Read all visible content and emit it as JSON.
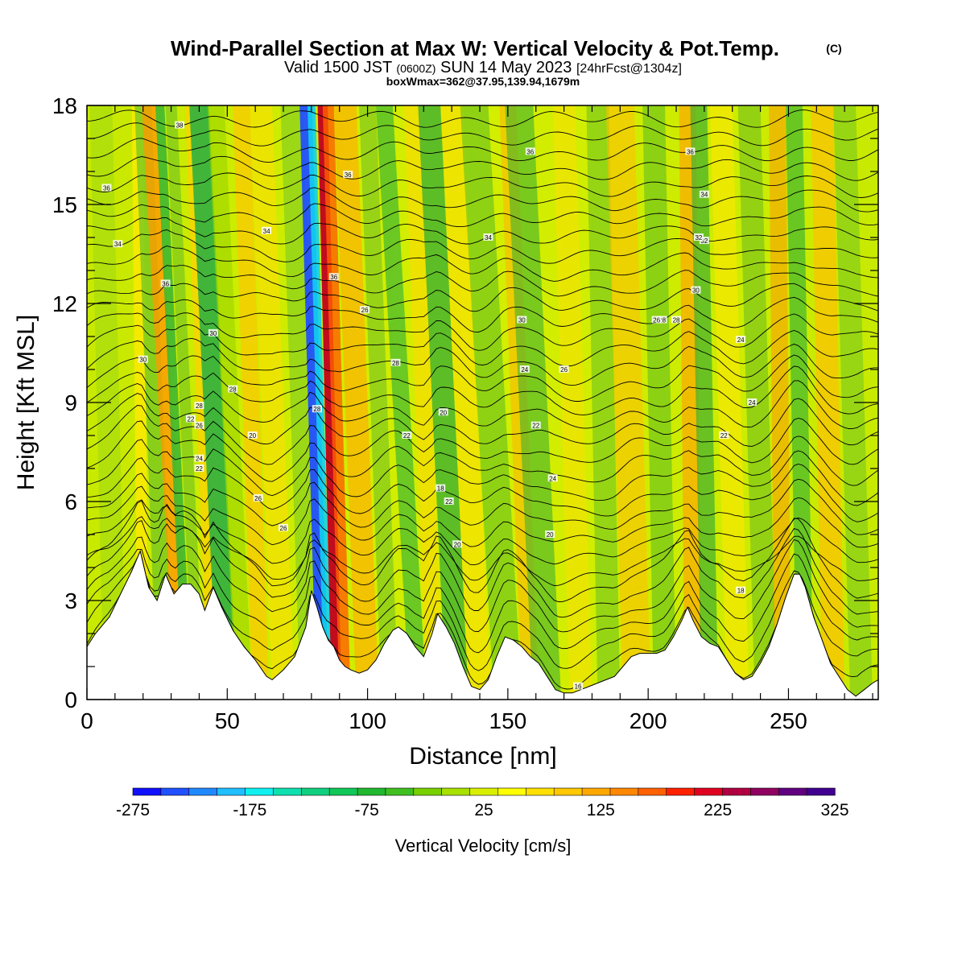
{
  "title": {
    "main": "Wind-Parallel Section at Max W: Vertical Velocity & Pot.Temp.",
    "copyright_mark": "(C)",
    "valid_prefix": "Valid 1500 JST",
    "valid_utc": "(0600Z)",
    "valid_date": "SUN 14 May 2023",
    "forecast": "[24hrFcst@1304z]",
    "boxwmax": "boxWmax=362@37.95,139.94,1679m"
  },
  "chart_data": {
    "type": "heatmap",
    "xlabel": "Distance [nm]",
    "ylabel": "Height [Kft MSL]",
    "xlim": [
      0,
      282
    ],
    "ylim": [
      0,
      18
    ],
    "x_ticks": [
      0,
      50,
      100,
      150,
      200,
      250
    ],
    "y_ticks": [
      0,
      3,
      6,
      9,
      12,
      15,
      18
    ],
    "colorbar": {
      "label": "Vertical Velocity [cm/s]",
      "tick_labels": [
        "-275",
        "-175",
        "-75",
        "25",
        "125",
        "225",
        "325"
      ],
      "tick_values": [
        -275,
        -175,
        -75,
        25,
        125,
        225,
        325
      ],
      "range": [
        -275,
        325
      ],
      "colors": [
        "#1010ff",
        "#2050ff",
        "#2088ff",
        "#20bfff",
        "#10f0f0",
        "#10e0b0",
        "#10d080",
        "#10c858",
        "#20b830",
        "#40c020",
        "#78d000",
        "#a8e000",
        "#d8f000",
        "#ffff00",
        "#ffe000",
        "#ffc800",
        "#ffa800",
        "#ff8800",
        "#ff6000",
        "#ff2000",
        "#e00020",
        "#b00040",
        "#900060",
        "#600080",
        "#400090"
      ]
    },
    "terrain": {
      "description": "white terrain silhouette, height in kft",
      "x": [
        0,
        3,
        8,
        12,
        16,
        19,
        22,
        25,
        28,
        31,
        34,
        37,
        40,
        42,
        45,
        48,
        52,
        56,
        60,
        64,
        66,
        70,
        74,
        78,
        80,
        82,
        84,
        86,
        88,
        90,
        92,
        94,
        97,
        100,
        103,
        106,
        109,
        111,
        114,
        117,
        120,
        123,
        125,
        128,
        131,
        134,
        137,
        140,
        143,
        146,
        149,
        152,
        155,
        158,
        161,
        164,
        167,
        170,
        173,
        176,
        179,
        182,
        185,
        188,
        191,
        194,
        197,
        200,
        203,
        206,
        209,
        212,
        214,
        216,
        219,
        222,
        225,
        228,
        231,
        234,
        237,
        240,
        243,
        246,
        249,
        252,
        254,
        256,
        259,
        262,
        265,
        268,
        271,
        274,
        277,
        280,
        282
      ],
      "h": [
        1.6,
        2.0,
        2.5,
        3.2,
        3.9,
        4.5,
        3.4,
        3.0,
        3.8,
        3.2,
        3.5,
        3.5,
        3.2,
        2.7,
        3.4,
        2.8,
        2.1,
        1.6,
        1.2,
        0.7,
        0.6,
        0.9,
        1.3,
        2.2,
        3.3,
        2.8,
        2.2,
        1.8,
        1.6,
        1.2,
        1.0,
        0.9,
        0.8,
        0.9,
        1.2,
        1.7,
        2.1,
        2.2,
        2.0,
        1.6,
        1.3,
        2.0,
        2.6,
        2.2,
        1.7,
        1.0,
        0.4,
        0.3,
        0.6,
        1.3,
        1.9,
        1.8,
        1.6,
        1.3,
        1.1,
        0.7,
        0.3,
        0.2,
        0.2,
        0.3,
        0.4,
        0.5,
        0.6,
        0.7,
        1.0,
        1.3,
        1.4,
        1.4,
        1.4,
        1.5,
        1.9,
        2.4,
        2.8,
        2.4,
        1.9,
        1.7,
        1.6,
        1.2,
        0.8,
        0.6,
        0.7,
        1.1,
        1.6,
        2.3,
        3.1,
        3.8,
        3.8,
        3.4,
        2.5,
        1.8,
        1.1,
        0.7,
        0.3,
        0.1,
        0.3,
        0.5,
        0.6
      ]
    },
    "theta_contours": {
      "description": "potential temperature isentropes (degC) with printed labels",
      "labels": [
        "38",
        "36",
        "36",
        "34",
        "34",
        "36",
        "34",
        "32",
        "36",
        "36",
        "26",
        "30",
        "30",
        "28",
        "26",
        "24",
        "22",
        "20",
        "26",
        "26",
        "24",
        "22",
        "20",
        "18",
        "22",
        "24",
        "28",
        "22",
        "20",
        "30",
        "28",
        "28",
        "26",
        "24",
        "22",
        "20",
        "18",
        "16",
        "36",
        "34",
        "32",
        "30",
        "28",
        "28",
        "26",
        "24",
        "22"
      ]
    }
  }
}
